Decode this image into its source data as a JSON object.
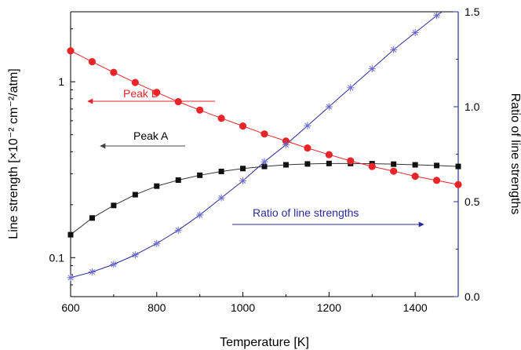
{
  "chart_data": {
    "type": "line",
    "xlabel": "Temperature [K]",
    "ylabel_left": "Line strength [×10⁻² cm⁻²/atm]",
    "ylabel_right": "Ratio of line strengths",
    "xlim": [
      600,
      1500
    ],
    "ylim_left": [
      0.06,
      2.5
    ],
    "yscale_left": "log",
    "ylim_right": [
      0.0,
      1.5
    ],
    "x_ticks": [
      "600",
      "800",
      "1000",
      "1200",
      "1400"
    ],
    "y_left_ticks": [
      "0.1",
      "1"
    ],
    "y_right_ticks": [
      "0.0",
      "0.5",
      "1.0",
      "1.5"
    ],
    "x": [
      600,
      650,
      700,
      750,
      800,
      850,
      900,
      950,
      1000,
      1050,
      1100,
      1150,
      1200,
      1250,
      1300,
      1350,
      1400,
      1450,
      1500
    ],
    "series": [
      {
        "name": "Peak A",
        "axis": "left",
        "color": "#333333",
        "marker": "square",
        "values": [
          0.135,
          0.168,
          0.198,
          0.228,
          0.255,
          0.276,
          0.294,
          0.309,
          0.321,
          0.33,
          0.337,
          0.341,
          0.343,
          0.343,
          0.342,
          0.34,
          0.337,
          0.334,
          0.33
        ]
      },
      {
        "name": "Peak B",
        "axis": "left",
        "color": "#e8262a",
        "marker": "circle",
        "values": [
          1.5,
          1.3,
          1.13,
          0.99,
          0.87,
          0.77,
          0.69,
          0.62,
          0.56,
          0.505,
          0.46,
          0.42,
          0.385,
          0.355,
          0.33,
          0.31,
          0.29,
          0.275,
          0.26
        ]
      },
      {
        "name": "Ratio of line strengths",
        "axis": "right",
        "color": "#2b2b9e",
        "marker": "asterisk",
        "values": [
          0.1,
          0.13,
          0.17,
          0.22,
          0.28,
          0.35,
          0.43,
          0.52,
          0.61,
          0.71,
          0.8,
          0.9,
          1.0,
          1.1,
          1.2,
          1.3,
          1.39,
          1.48,
          1.56
        ]
      }
    ],
    "annotations": [
      {
        "text": "Peak B",
        "color": "#e8262a",
        "arrow": "left"
      },
      {
        "text": "Peak A",
        "color": "#000000",
        "arrow": "left"
      },
      {
        "text": "Ratio of line strengths",
        "color": "#2b2b9e",
        "arrow": "right"
      }
    ],
    "right_axis_color": "#2b2b9e",
    "grid": false
  }
}
